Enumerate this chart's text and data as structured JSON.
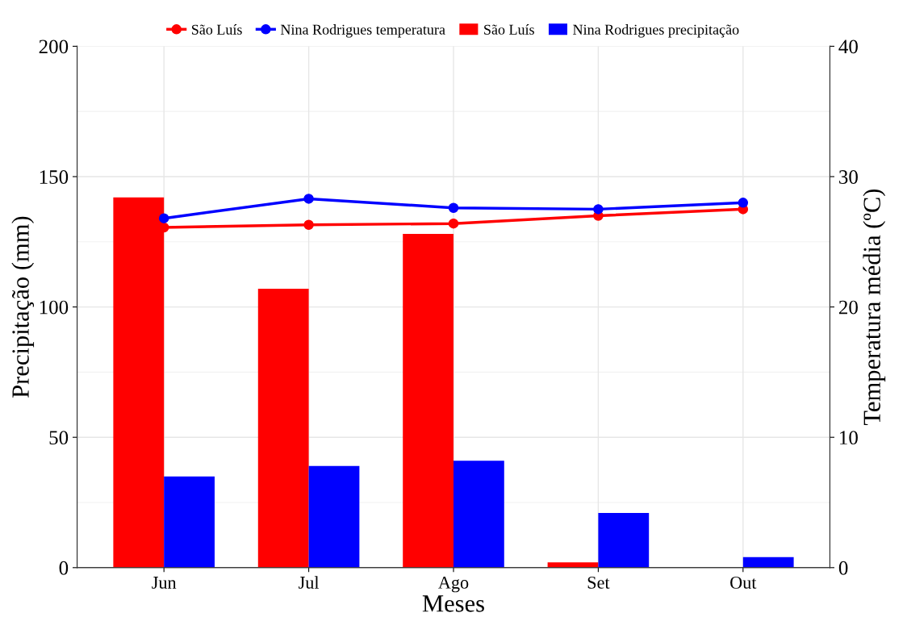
{
  "chart_data": {
    "type": "bar",
    "xlabel": "Meses",
    "ylabel": "Precipitação (mm)",
    "y2label": "Temperatura média (ºC)",
    "categories": [
      "Jun",
      "Jul",
      "Ago",
      "Set",
      "Out"
    ],
    "series": [
      {
        "name": "São Luís",
        "type": "line",
        "axis": "y2",
        "color": "#ff0000",
        "values": [
          26.1,
          26.3,
          26.4,
          27.0,
          27.5
        ]
      },
      {
        "name": "Nina Rodrigues temperatura",
        "type": "line",
        "axis": "y2",
        "color": "#0000ff",
        "values": [
          26.8,
          28.3,
          27.6,
          27.5,
          28.0
        ]
      },
      {
        "name": "São Luís",
        "color": "#ff0000",
        "values": [
          142,
          107,
          128,
          2,
          0
        ]
      },
      {
        "name": "Nina Rodrigues precipitação",
        "color": "#0000ff",
        "values": [
          35,
          39,
          41,
          21,
          4
        ]
      }
    ],
    "ylim": [
      0,
      200
    ],
    "yticks": [
      0,
      50,
      100,
      150,
      200
    ],
    "y2lim": [
      0,
      40
    ],
    "y2ticks": [
      0,
      10,
      20,
      30,
      40
    ],
    "grid": true,
    "legend": "top",
    "marker": "circle",
    "line_style": "solid"
  }
}
